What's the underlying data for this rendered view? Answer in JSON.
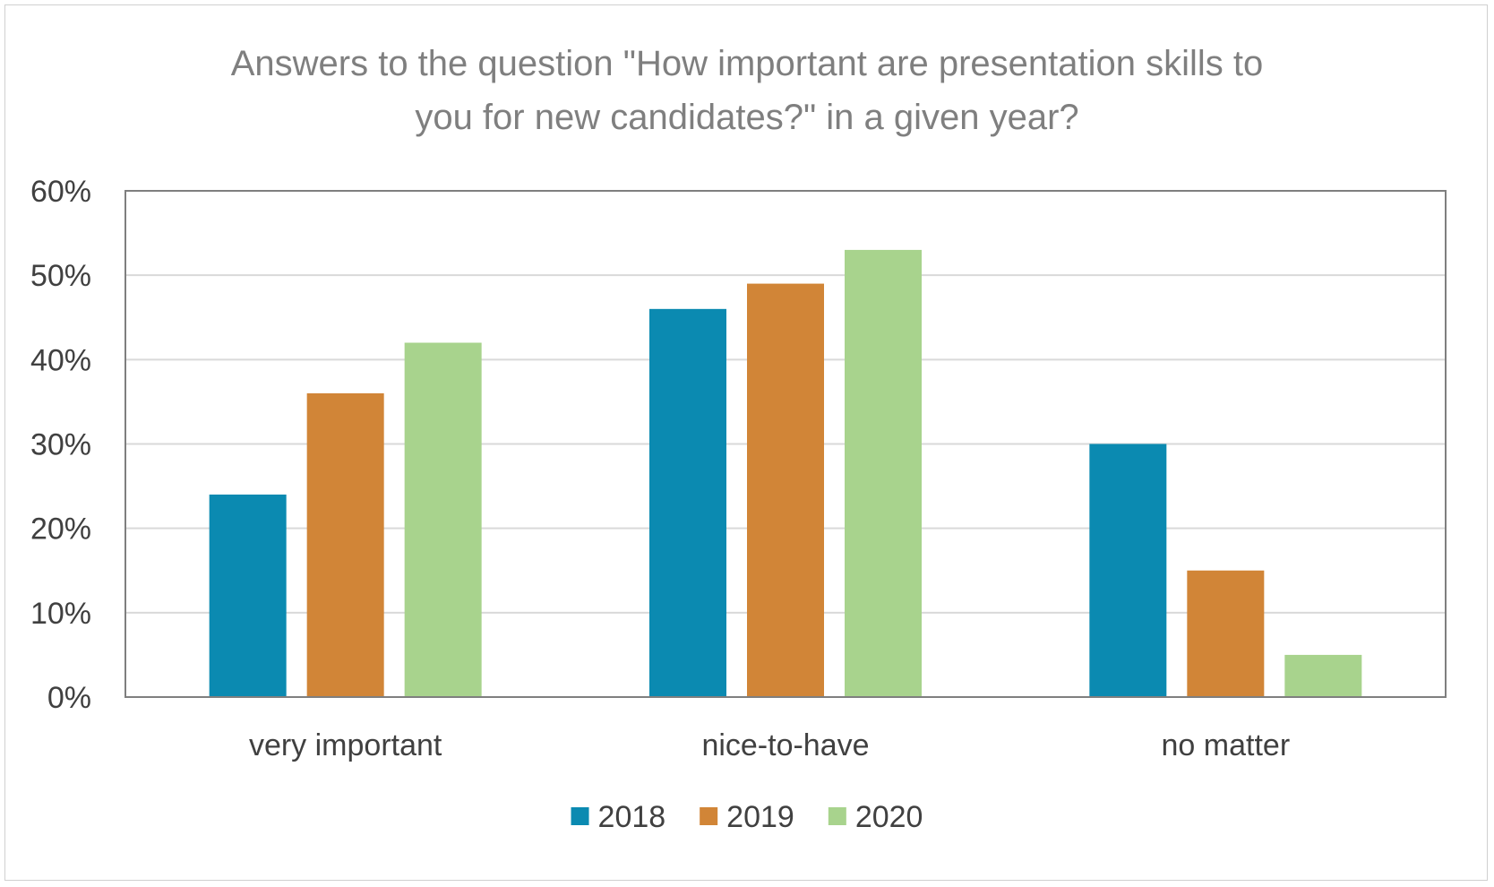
{
  "chart_data": {
    "type": "bar",
    "title": "Answers to the question \"How important are presentation skills to you for new candidates?\" in a given year?",
    "title_lines": [
      "Answers to the question \"How important are presentation skills to",
      "you for new candidates?\" in a given year?"
    ],
    "categories": [
      "very important",
      "nice-to-have",
      "no matter"
    ],
    "series": [
      {
        "name": "2018",
        "color": "#0b8ab1",
        "values": [
          24,
          46,
          30
        ]
      },
      {
        "name": "2019",
        "color": "#d18537",
        "values": [
          36,
          49,
          15
        ]
      },
      {
        "name": "2020",
        "color": "#a8d38d",
        "values": [
          42,
          53,
          5
        ]
      }
    ],
    "ylim": [
      0,
      60
    ],
    "y_ticks": [
      0,
      10,
      20,
      30,
      40,
      50,
      60
    ],
    "y_tick_labels": [
      "0%",
      "10%",
      "20%",
      "30%",
      "40%",
      "50%",
      "60%"
    ],
    "xlabel": "",
    "ylabel": "",
    "grid": true,
    "legend_position": "bottom"
  }
}
